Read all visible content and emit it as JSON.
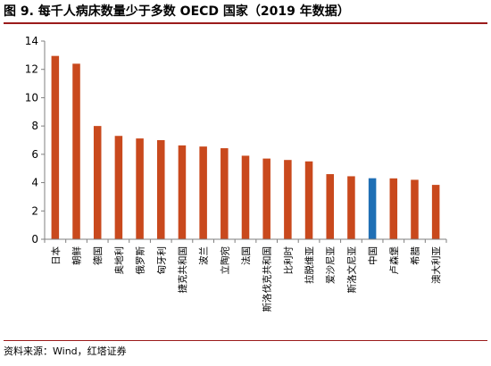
{
  "figure": {
    "title": "图 9. 每千人病床数量少于多数 OECD 国家（2019 年数据）",
    "source": "资料来源：Wind，红塔证券"
  },
  "chart_data": {
    "type": "bar",
    "title": "",
    "xlabel": "",
    "ylabel": "",
    "ylim": [
      0,
      14
    ],
    "yticks": [
      0,
      2,
      4,
      6,
      8,
      10,
      12,
      14
    ],
    "grid": false,
    "legend": "none",
    "categories": [
      "日本",
      "朝鲜",
      "德国",
      "奥地利",
      "俄罗斯",
      "匈牙利",
      "捷克共和国",
      "波兰",
      "立陶宛",
      "法国",
      "斯洛伐克共和国",
      "比利时",
      "拉脱维亚",
      "爱沙尼亚",
      "斯洛文尼亚",
      "中国",
      "卢森堡",
      "希腊",
      "澳大利亚"
    ],
    "values": [
      12.95,
      12.4,
      8.0,
      7.3,
      7.12,
      7.0,
      6.63,
      6.55,
      6.43,
      5.9,
      5.7,
      5.6,
      5.5,
      4.6,
      4.45,
      4.31,
      4.3,
      4.2,
      3.84
    ],
    "colors": {
      "default": "#c9491d",
      "highlight": "#1f6fb5",
      "highlight_category": "中国",
      "axis": "#7f7f7f"
    }
  }
}
